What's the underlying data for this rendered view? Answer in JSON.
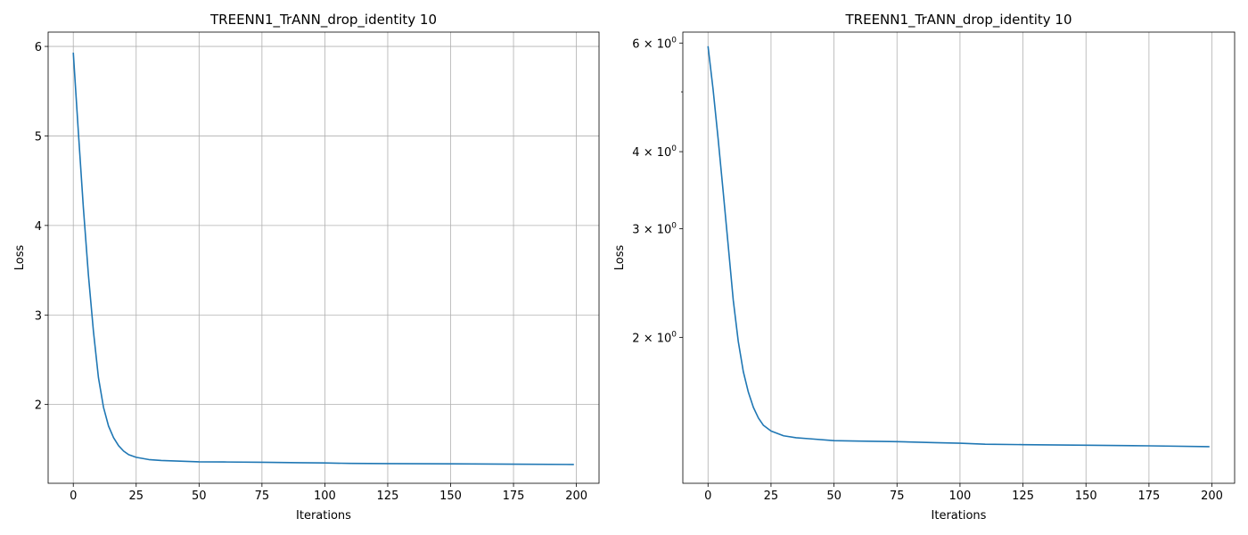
{
  "chart_data": [
    {
      "type": "line",
      "title": "TREENN1_TrANN_drop_identity 10",
      "xlabel": "Iterations",
      "ylabel": "Loss",
      "yscale": "linear",
      "xlim": [
        -10,
        209
      ],
      "ylim": [
        1.12,
        6.16
      ],
      "grid": "both",
      "x_ticks": [
        0,
        25,
        50,
        75,
        100,
        125,
        150,
        175,
        200
      ],
      "x_tick_labels": [
        "0",
        "25",
        "50",
        "75",
        "100",
        "125",
        "150",
        "175",
        "200"
      ],
      "y_ticks": [
        2,
        3,
        4,
        5,
        6
      ],
      "y_tick_labels": [
        "2",
        "3",
        "4",
        "5",
        "6"
      ],
      "series": [
        {
          "color": "#1f77b4",
          "x": [
            0,
            2,
            4,
            6,
            8,
            10,
            12,
            14,
            16,
            18,
            20,
            22,
            25,
            30,
            35,
            40,
            50,
            60,
            75,
            90,
            100,
            110,
            125,
            150,
            175,
            199
          ],
          "y": [
            5.93,
            5.05,
            4.2,
            3.45,
            2.82,
            2.3,
            1.97,
            1.76,
            1.63,
            1.54,
            1.48,
            1.44,
            1.41,
            1.385,
            1.375,
            1.37,
            1.36,
            1.358,
            1.355,
            1.35,
            1.347,
            1.342,
            1.34,
            1.337,
            1.334,
            1.33
          ]
        }
      ]
    },
    {
      "type": "line",
      "title": "TREENN1_TrANN_drop_identity 10",
      "xlabel": "Iterations",
      "ylabel": "Loss",
      "yscale": "log",
      "xlim": [
        -10,
        209
      ],
      "ylim": [
        1.16,
        6.25
      ],
      "grid": "x",
      "x_ticks": [
        0,
        25,
        50,
        75,
        100,
        125,
        150,
        175,
        200
      ],
      "x_tick_labels": [
        "0",
        "25",
        "50",
        "75",
        "100",
        "125",
        "150",
        "175",
        "200"
      ],
      "y_ticks": [
        2,
        3,
        4,
        6
      ],
      "y_tick_labels": [
        [
          "2",
          "0"
        ],
        [
          "3",
          "0"
        ],
        [
          "4",
          "0"
        ],
        [
          "6",
          "0"
        ]
      ],
      "y_minor_ticks": [
        5
      ],
      "series": [
        {
          "color": "#1f77b4",
          "x": [
            0,
            2,
            4,
            6,
            8,
            10,
            12,
            14,
            16,
            18,
            20,
            22,
            25,
            30,
            35,
            40,
            50,
            60,
            75,
            90,
            100,
            110,
            125,
            150,
            175,
            199
          ],
          "y": [
            5.93,
            5.05,
            4.2,
            3.45,
            2.82,
            2.3,
            1.97,
            1.76,
            1.63,
            1.54,
            1.48,
            1.44,
            1.41,
            1.385,
            1.375,
            1.37,
            1.36,
            1.358,
            1.355,
            1.35,
            1.347,
            1.342,
            1.34,
            1.337,
            1.334,
            1.33
          ]
        }
      ]
    }
  ]
}
